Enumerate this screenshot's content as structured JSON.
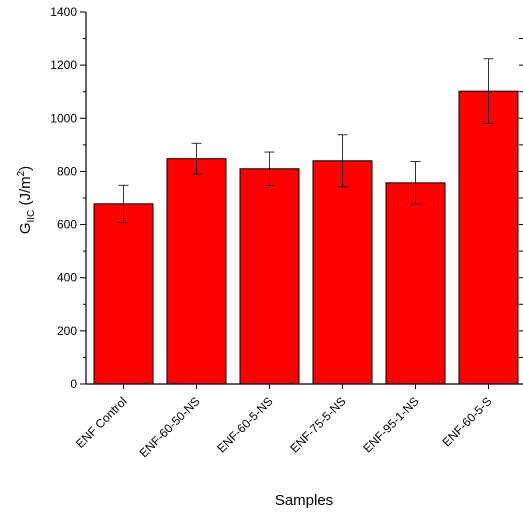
{
  "chart_data": {
    "type": "bar",
    "categories": [
      "ENF Control",
      "ENF-60-50-NS",
      "ENF-60-5-NS",
      "ENF-75-5-NS",
      "ENF-95-1-NS",
      "ENF-60-5-S"
    ],
    "values": [
      678,
      848,
      810,
      840,
      757,
      1102
    ],
    "errors": [
      70,
      58,
      63,
      98,
      80,
      122
    ],
    "xlabel": "Samples",
    "ylabel": {
      "main": "G",
      "sub": "IIC",
      "unit_prefix": " (J/m",
      "unit_sup": "2",
      "unit_suffix": ")"
    },
    "ylim": [
      0,
      1400
    ],
    "yticks": [
      0,
      200,
      400,
      600,
      800,
      1000,
      1200,
      1400
    ],
    "bar_color": "#ff0000",
    "grid": false
  }
}
